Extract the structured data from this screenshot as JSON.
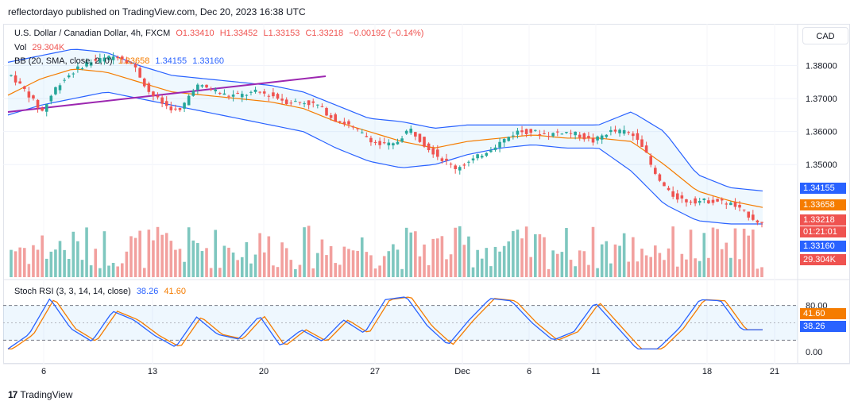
{
  "header": {
    "publisher": "reflectordayo published on TradingView.com, Dec 20, 2023 16:38 UTC"
  },
  "legend": {
    "symbol": "U.S. Dollar / Canadian Dollar, 4h, FXCM",
    "open": "O1.33410",
    "high": "H1.33452",
    "low": "L1.33153",
    "close": "C1.33218",
    "change": "−0.00192 (−0.14%)",
    "vol_label": "Vol",
    "vol_value": "29.304K",
    "bb_label": "BB (20, SMA, close, 2, 0)",
    "bb_basis": "1.33658",
    "bb_upper": "1.34155",
    "bb_lower": "1.33160",
    "stoch_label": "Stoch RSI (3, 3, 14, 14, close)",
    "stoch_k": "38.26",
    "stoch_d": "41.60"
  },
  "currency_button": "CAD",
  "price_axis": {
    "ticks": [
      "1.38000",
      "1.37000",
      "1.36000",
      "1.35000"
    ]
  },
  "stoch_axis": {
    "ticks": [
      "80.00",
      "0.00"
    ]
  },
  "time_axis": {
    "ticks": [
      "6",
      "13",
      "20",
      "27",
      "Dec",
      "6",
      "11",
      "18",
      "21"
    ]
  },
  "price_tags": {
    "upper": "1.34155",
    "basis": "1.33658",
    "close": "1.33218",
    "countdown": "01:21:01",
    "lower": "1.33160",
    "volume": "29.304K",
    "stoch_d": "41.60",
    "stoch_k": "38.26"
  },
  "colors": {
    "up": "#26a69a",
    "down": "#ef5350",
    "bb_band": "#2962ff",
    "bb_basis": "#f57c00",
    "trendline": "#9c27b0",
    "vol_up": "#7ec7bf",
    "vol_down": "#f2a09e"
  },
  "chart_data": {
    "type": "candlestick",
    "x": [
      "6",
      "13",
      "20",
      "27",
      "Dec",
      "6",
      "11",
      "18",
      "21"
    ],
    "close_path": [
      1.377,
      1.372,
      1.366,
      1.374,
      1.378,
      1.381,
      1.382,
      1.383,
      1.38,
      1.372,
      1.368,
      1.366,
      1.374,
      1.373,
      1.371,
      1.371,
      1.372,
      1.371,
      1.369,
      1.369,
      1.368,
      1.364,
      1.362,
      1.359,
      1.356,
      1.356,
      1.361,
      1.356,
      1.352,
      1.349,
      1.351,
      1.354,
      1.357,
      1.36,
      1.36,
      1.359,
      1.36,
      1.359,
      1.357,
      1.36,
      1.36,
      1.358,
      1.347,
      1.341,
      1.339,
      1.339,
      1.339,
      1.338,
      1.335,
      1.332
    ],
    "bb_upper_path": [
      1.381,
      1.383,
      1.385,
      1.384,
      1.38,
      1.377,
      1.376,
      1.375,
      1.374,
      1.372,
      1.368,
      1.364,
      1.363,
      1.361,
      1.362,
      1.362,
      1.362,
      1.362,
      1.362,
      1.366,
      1.36,
      1.347,
      1.343,
      1.342
    ],
    "bb_basis_path": [
      1.371,
      1.376,
      1.379,
      1.378,
      1.375,
      1.372,
      1.371,
      1.37,
      1.369,
      1.367,
      1.363,
      1.36,
      1.357,
      1.355,
      1.357,
      1.358,
      1.359,
      1.358,
      1.358,
      1.357,
      1.35,
      1.342,
      1.339,
      1.337
    ],
    "bb_lower_path": [
      1.365,
      1.368,
      1.37,
      1.372,
      1.37,
      1.368,
      1.366,
      1.364,
      1.362,
      1.36,
      1.355,
      1.351,
      1.349,
      1.35,
      1.353,
      1.355,
      1.356,
      1.355,
      1.355,
      1.348,
      1.338,
      1.333,
      1.332,
      1.332
    ],
    "stoch_k_path": [
      5,
      30,
      92,
      40,
      18,
      70,
      55,
      28,
      8,
      60,
      30,
      22,
      62,
      10,
      38,
      18,
      55,
      32,
      90,
      95,
      45,
      12,
      55,
      92,
      88,
      50,
      20,
      35,
      85,
      45,
      5,
      5,
      40,
      90,
      88,
      38,
      38
    ],
    "ylim": [
      1.332,
      1.3835
    ],
    "stoch_levels": [
      80,
      20
    ]
  }
}
